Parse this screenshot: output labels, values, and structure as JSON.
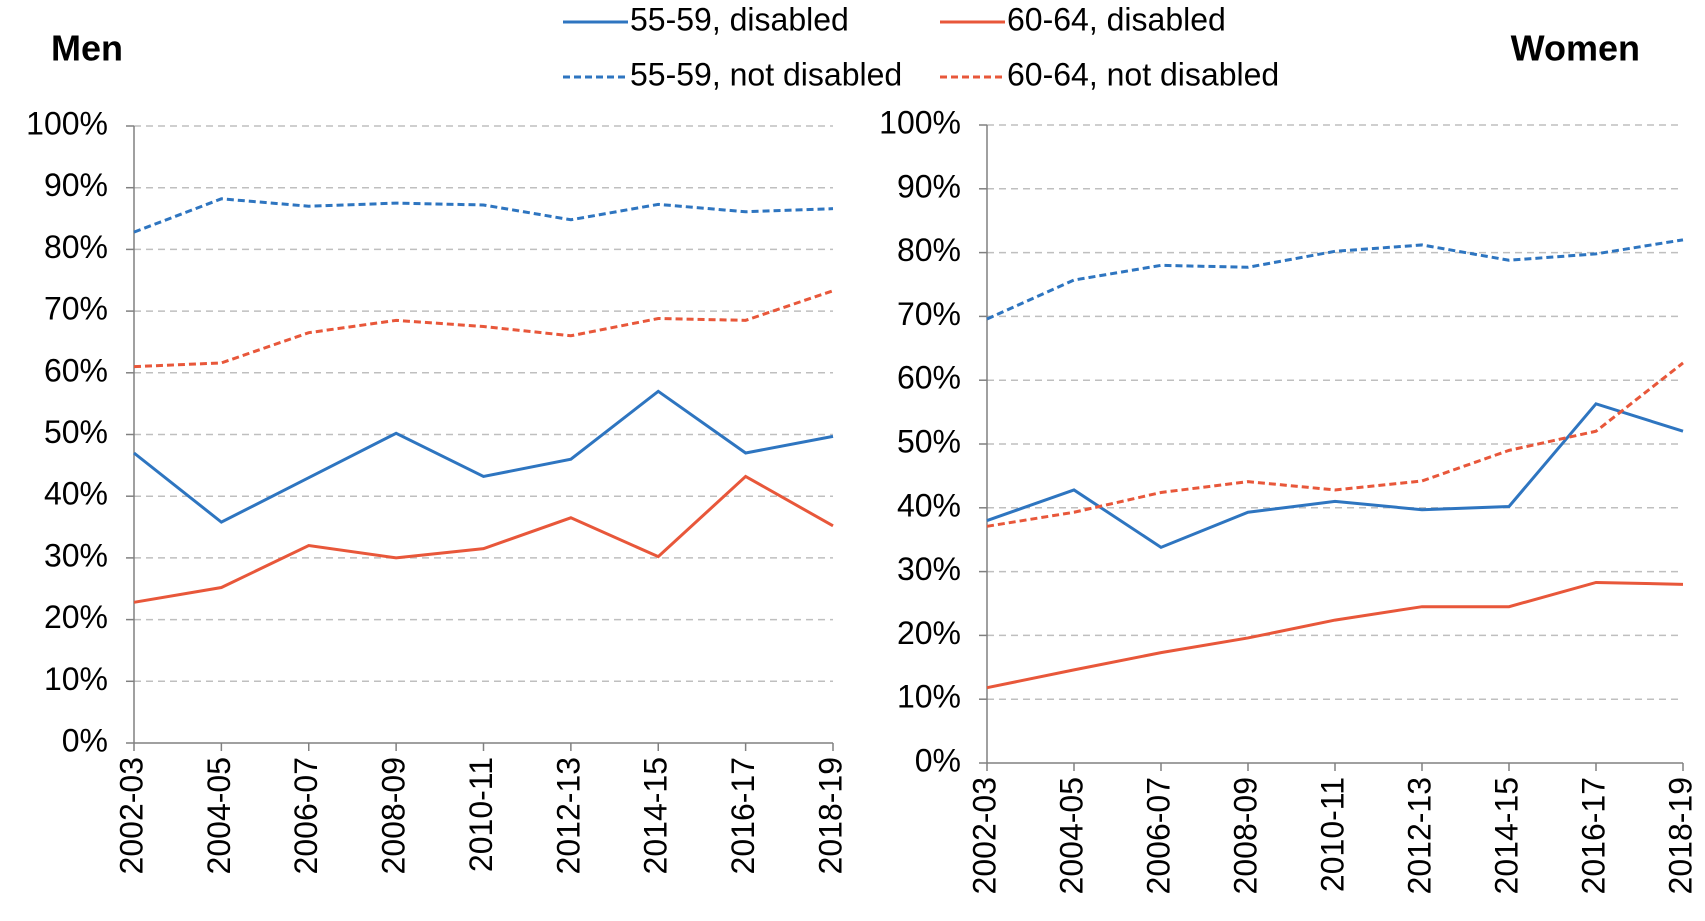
{
  "chart_data": [
    {
      "type": "line",
      "title": "Men",
      "categories": [
        "2002-03",
        "2004-05",
        "2006-07",
        "2008-09",
        "2010-11",
        "2012-13",
        "2014-15",
        "2016-17",
        "2018-19"
      ],
      "ylim": [
        0,
        100
      ],
      "yticks": [
        {
          "value": 0,
          "label": "0%"
        },
        {
          "value": 10,
          "label": "10%"
        },
        {
          "value": 20,
          "label": "20%"
        },
        {
          "value": 30,
          "label": "30%"
        },
        {
          "value": 40,
          "label": "40%"
        },
        {
          "value": 50,
          "label": "50%"
        },
        {
          "value": 60,
          "label": "60%"
        },
        {
          "value": 70,
          "label": "70%"
        },
        {
          "value": 80,
          "label": "80%"
        },
        {
          "value": 90,
          "label": "90%"
        },
        {
          "value": 100,
          "label": "100%"
        }
      ],
      "grid": true,
      "series": [
        {
          "name": "55-59, disabled",
          "color": "#2e75c0",
          "dash": false,
          "values": [
            47,
            35.8,
            43,
            50.2,
            43.2,
            46,
            57,
            47,
            49.7
          ]
        },
        {
          "name": "60-64, disabled",
          "color": "#e8573a",
          "dash": false,
          "values": [
            22.8,
            25.2,
            32,
            30,
            31.5,
            36.5,
            30.2,
            43.2,
            35.2
          ]
        },
        {
          "name": "55-59, not disabled",
          "color": "#2e75c0",
          "dash": true,
          "values": [
            82.8,
            88.2,
            87,
            87.5,
            87.2,
            84.8,
            87.3,
            86.1,
            86.6
          ]
        },
        {
          "name": "60-64, not disabled",
          "color": "#e8573a",
          "dash": true,
          "values": [
            61,
            61.6,
            66.5,
            68.5,
            67.5,
            66,
            68.8,
            68.5,
            73.3
          ]
        }
      ]
    },
    {
      "type": "line",
      "title": "Women",
      "categories": [
        "2002-03",
        "2004-05",
        "2006-07",
        "2008-09",
        "2010-11",
        "2012-13",
        "2014-15",
        "2016-17",
        "2018-19"
      ],
      "ylim": [
        0,
        100
      ],
      "yticks": [
        {
          "value": 0,
          "label": "0%"
        },
        {
          "value": 10,
          "label": "10%"
        },
        {
          "value": 20,
          "label": "20%"
        },
        {
          "value": 30,
          "label": "30%"
        },
        {
          "value": 40,
          "label": "40%"
        },
        {
          "value": 50,
          "label": "50%"
        },
        {
          "value": 60,
          "label": "60%"
        },
        {
          "value": 70,
          "label": "70%"
        },
        {
          "value": 80,
          "label": "80%"
        },
        {
          "value": 90,
          "label": "90%"
        },
        {
          "value": 100,
          "label": "100%"
        }
      ],
      "grid": true,
      "series": [
        {
          "color": "#2e75c0",
          "dash": false,
          "values": [
            38,
            42.8,
            33.8,
            39.3,
            41,
            39.7,
            40.2,
            56.3,
            52
          ]
        },
        {
          "color": "#e8573a",
          "dash": false,
          "values": [
            11.8,
            14.6,
            17.3,
            19.6,
            22.4,
            24.5,
            24.5,
            28.3,
            28
          ]
        },
        {
          "color": "#2e75c0",
          "dash": true,
          "values": [
            69.6,
            75.7,
            78,
            77.7,
            80.2,
            81.2,
            78.8,
            79.8,
            82
          ]
        },
        {
          "color": "#e8573a",
          "dash": true,
          "values": [
            37.1,
            39.3,
            42.4,
            44.1,
            42.8,
            44.2,
            49,
            52,
            62.7
          ]
        }
      ]
    }
  ]
}
